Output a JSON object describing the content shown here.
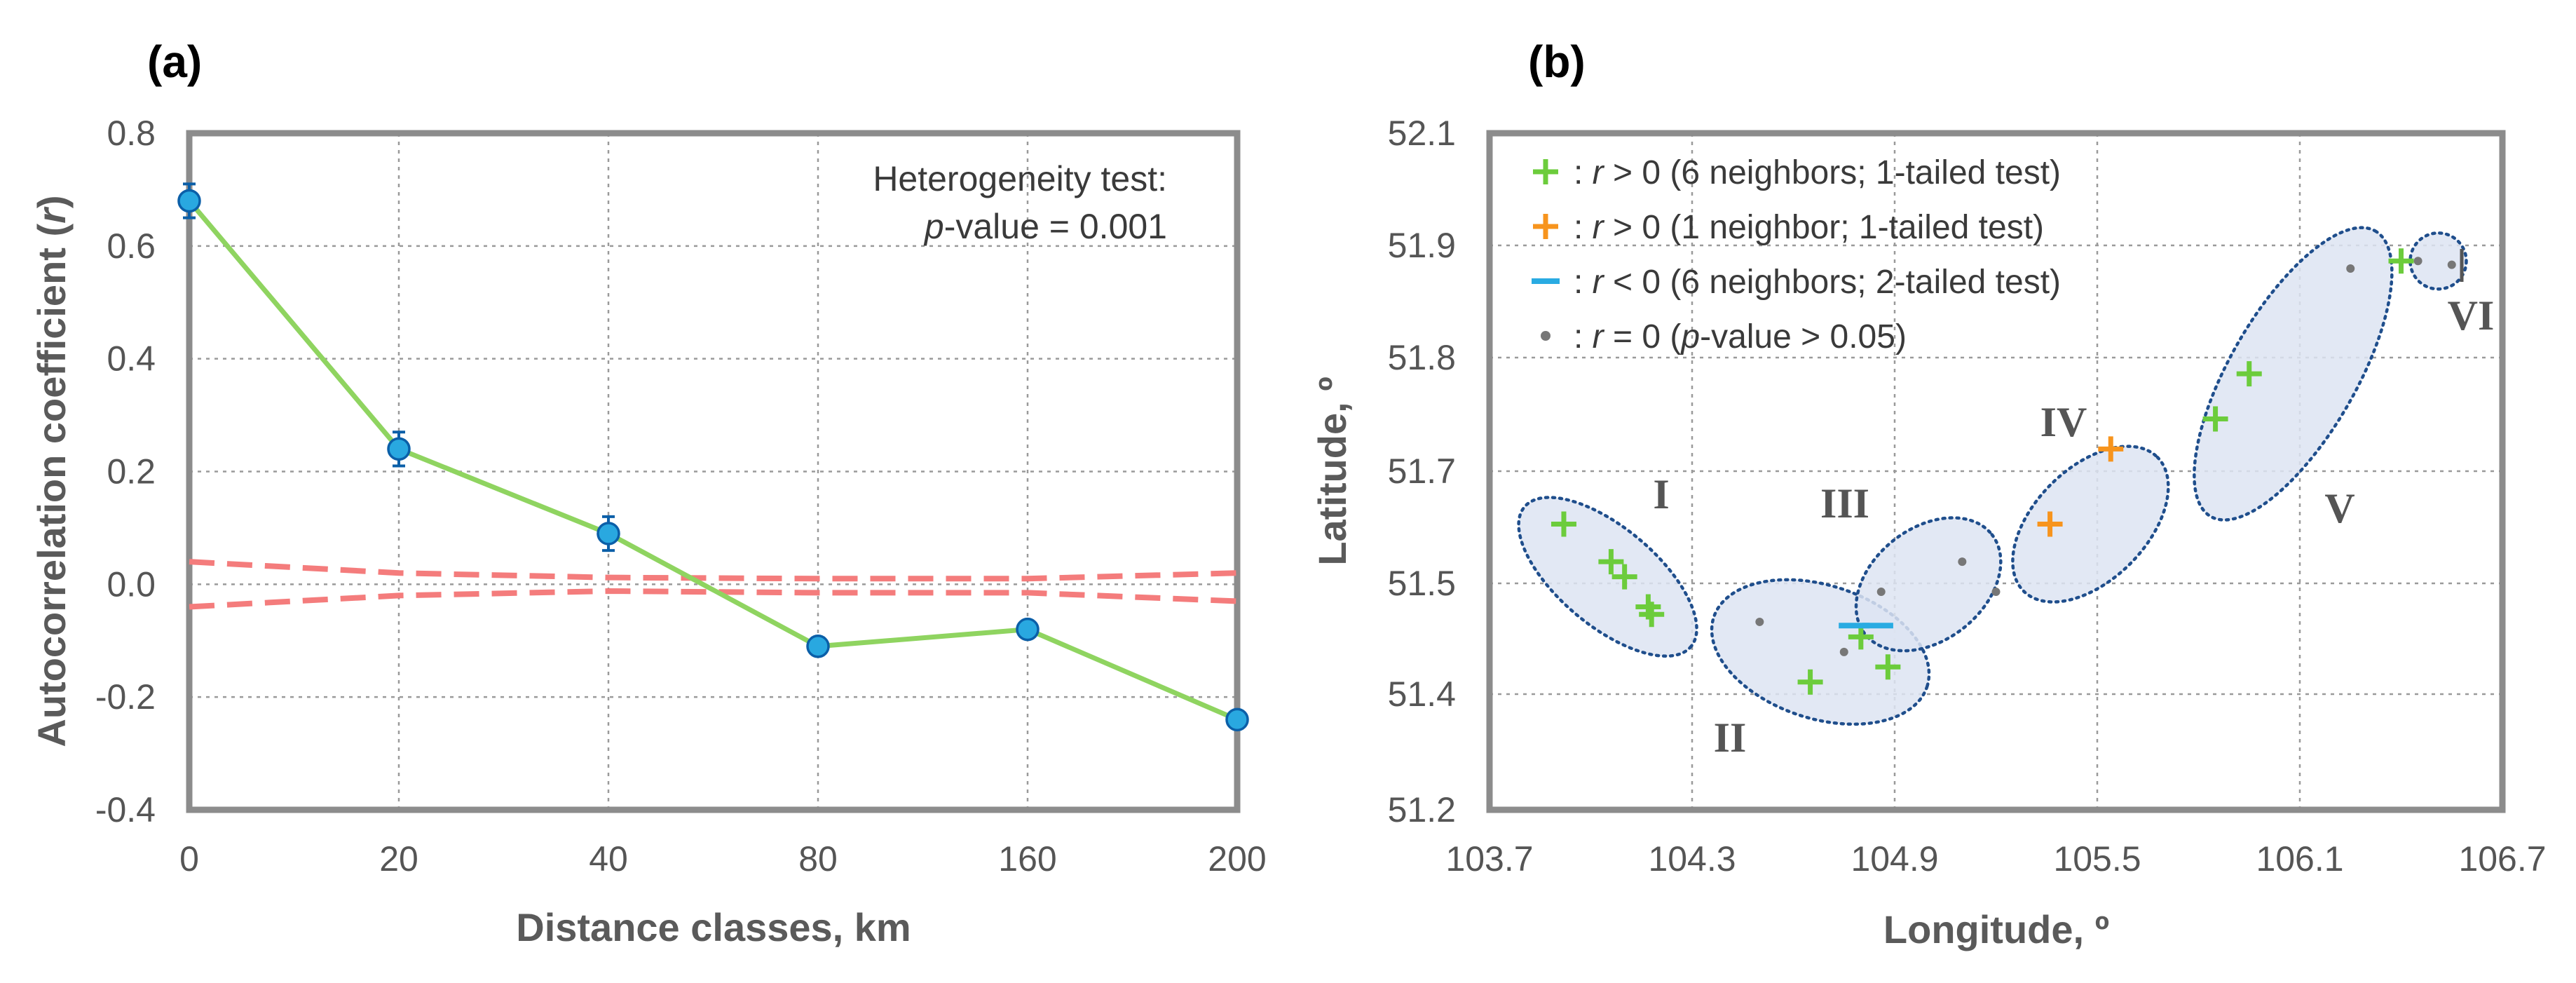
{
  "colors": {
    "green": "#6ccc3c",
    "orange": "#f7941d",
    "blue": "#29abe2",
    "red_dash": "#f47c7c",
    "line": "#8fd460",
    "marker": "#29a8e0",
    "marker_edge": "#0b5fa8",
    "cluster_fill": "#dde4f2",
    "cluster_edge": "#1f4e8c",
    "grey_dot": "#777777"
  },
  "chart_data": [
    {
      "type": "line",
      "panel_label": "(a)",
      "xlabel": "Distance classes, km",
      "ylabel": "Autocorrelation coefficient (r)",
      "ylabel_prefix": "Autocorrelation coefficient (",
      "ylabel_var": "r",
      "ylabel_suffix": ")",
      "categories": [
        "0",
        "20",
        "40",
        "80",
        "160",
        "200"
      ],
      "values": [
        0.68,
        0.24,
        0.09,
        -0.11,
        -0.08,
        -0.24
      ],
      "error": [
        0.03,
        0.03,
        0.03,
        0.01,
        0.01,
        0.01
      ],
      "ylim": [
        -0.4,
        0.8
      ],
      "yticks": [
        0.8,
        0.6,
        0.4,
        0.2,
        0.0,
        -0.2,
        -0.4
      ],
      "ytick_labels": [
        "0.8",
        "0.6",
        "0.4",
        "0.2",
        "0.0",
        "-0.2",
        "-0.4"
      ],
      "upper_bound": [
        0.04,
        0.02,
        0.012,
        0.01,
        0.01,
        0.02
      ],
      "lower_bound": [
        -0.04,
        -0.02,
        -0.012,
        -0.015,
        -0.015,
        -0.03
      ],
      "grid": true,
      "annotation": {
        "line1": "Heterogeneity test:",
        "line2_var": "p",
        "line2_rest": "-value = 0.001"
      }
    },
    {
      "type": "scatter",
      "panel_label": "(b)",
      "xlabel": "Longitude, º",
      "ylabel": "Latitude, º",
      "xlim": [
        103.7,
        106.7
      ],
      "ylim": [
        51.2,
        52.1
      ],
      "xticks": [
        "103.7",
        "104.3",
        "104.9",
        "105.5",
        "106.1",
        "106.7"
      ],
      "yticks": [
        "52.1",
        "51.9",
        "51.8",
        "51.7",
        "51.5",
        "51.4",
        "51.2"
      ],
      "grid": true,
      "legend": [
        {
          "symbol": "+",
          "color": "green",
          "prefix": ": ",
          "var": "r",
          "text": " > 0 (6 neighbors; 1-tailed test)"
        },
        {
          "symbol": "+",
          "color": "orange",
          "prefix": ": ",
          "var": "r",
          "text": " > 0 (1 neighbor; 1-tailed test)"
        },
        {
          "symbol": "−",
          "color": "blue",
          "prefix": ": ",
          "var": "r",
          "text": " < 0 (6 neighbors; 2-tailed test)"
        },
        {
          "symbol": "•",
          "color": "grey_dot",
          "prefix": ": ",
          "var": "r",
          "text": " = 0 (",
          "var2": "p",
          "text2": "-value > 0.05)"
        }
      ],
      "series": [
        {
          "name": "r > 0 (6 neighbors)",
          "marker": "green_plus",
          "points": [
            [
              103.92,
              51.58
            ],
            [
              104.06,
              51.53
            ],
            [
              104.1,
              51.51
            ],
            [
              104.17,
              51.47
            ],
            [
              104.18,
              51.46
            ],
            [
              104.65,
              51.37
            ],
            [
              104.8,
              51.43
            ],
            [
              104.88,
              51.39
            ],
            [
              105.85,
              51.72
            ],
            [
              105.95,
              51.78
            ],
            [
              106.4,
              51.93
            ]
          ]
        },
        {
          "name": "r > 0 (1 neighbor)",
          "marker": "orange_plus",
          "points": [
            [
              105.36,
              51.58
            ],
            [
              105.54,
              51.68
            ]
          ]
        },
        {
          "name": "r < 0 (6 neighbors)",
          "marker": "blue_minus",
          "points": [
            [
              104.78,
              51.445
            ],
            [
              104.85,
              51.445
            ]
          ]
        },
        {
          "name": "r = 0",
          "marker": "grey_dot",
          "points": [
            [
              104.5,
              51.45
            ],
            [
              104.75,
              51.41
            ],
            [
              104.86,
              51.49
            ],
            [
              105.1,
              51.53
            ],
            [
              105.2,
              51.49
            ],
            [
              106.25,
              51.92
            ],
            [
              106.45,
              51.93
            ],
            [
              106.55,
              51.925
            ]
          ]
        }
      ],
      "clusters": [
        {
          "label": "I",
          "cx": 104.05,
          "cy": 51.51
        },
        {
          "label": "II",
          "cx": 104.68,
          "cy": 51.41
        },
        {
          "label": "III",
          "cx": 105.0,
          "cy": 51.5
        },
        {
          "label": "IV",
          "cx": 105.48,
          "cy": 51.58
        },
        {
          "label": "V",
          "cx": 106.08,
          "cy": 51.78
        },
        {
          "label": "VI",
          "cx": 106.51,
          "cy": 51.93
        }
      ]
    }
  ]
}
